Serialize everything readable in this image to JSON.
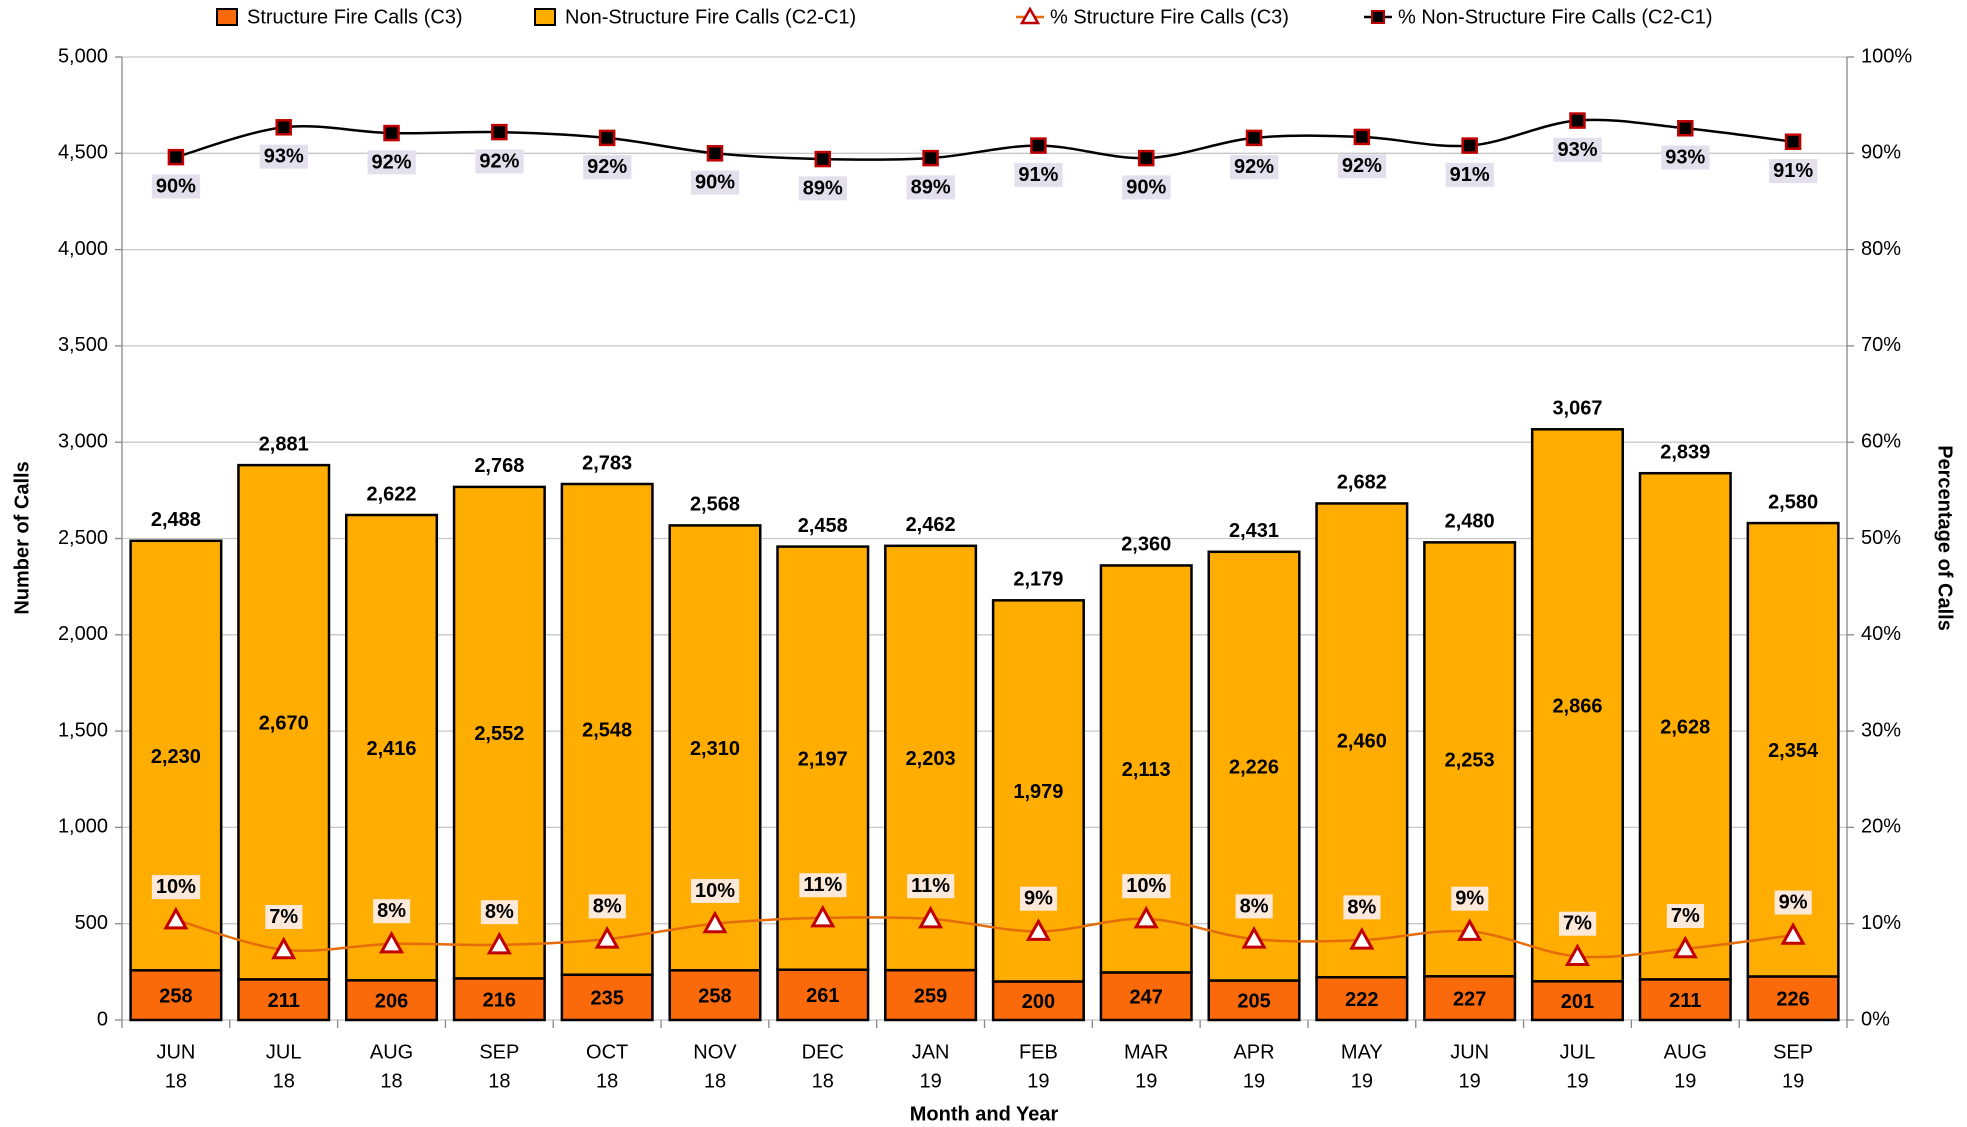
{
  "chart_data": {
    "type": "bar",
    "categories": [
      [
        "JUN",
        "18"
      ],
      [
        "JUL",
        "18"
      ],
      [
        "AUG",
        "18"
      ],
      [
        "SEP",
        "18"
      ],
      [
        "OCT",
        "18"
      ],
      [
        "NOV",
        "18"
      ],
      [
        "DEC",
        "18"
      ],
      [
        "JAN",
        "19"
      ],
      [
        "FEB",
        "19"
      ],
      [
        "MAR",
        "19"
      ],
      [
        "APR",
        "19"
      ],
      [
        "MAY",
        "19"
      ],
      [
        "JUN",
        "19"
      ],
      [
        "JUL",
        "19"
      ],
      [
        "AUG",
        "19"
      ],
      [
        "SEP",
        "19"
      ]
    ],
    "series": [
      {
        "name": "Structure Fire Calls (C3)",
        "type": "bar",
        "color": "#fa6a0a",
        "values": [
          258,
          211,
          206,
          216,
          235,
          258,
          261,
          259,
          200,
          247,
          205,
          222,
          227,
          201,
          211,
          226
        ]
      },
      {
        "name": "Non-Structure Fire Calls (C2-C1)",
        "type": "bar",
        "color": "#ffad00",
        "values": [
          2230,
          2670,
          2416,
          2552,
          2548,
          2310,
          2197,
          2203,
          1979,
          2113,
          2226,
          2460,
          2253,
          2866,
          2628,
          2354
        ],
        "value_labels": [
          "2,230",
          "2,670",
          "2,416",
          "2,552",
          "2,548",
          "2,310",
          "2,197",
          "2,203",
          "1,979",
          "2,113",
          "2,226",
          "2,460",
          "2,253",
          "2,866",
          "2,628",
          "2,354"
        ]
      },
      {
        "name": "% Structure Fire Calls (C3)",
        "type": "line",
        "axis": "y2",
        "color": "#e46c0a",
        "marker": "triangle",
        "marker_color": "#c00000",
        "values": [
          10.4,
          7.3,
          7.9,
          7.8,
          8.4,
          10.0,
          10.6,
          10.5,
          9.2,
          10.5,
          8.4,
          8.3,
          9.2,
          6.6,
          7.4,
          8.8
        ],
        "value_labels": [
          "10%",
          "7%",
          "8%",
          "8%",
          "8%",
          "10%",
          "11%",
          "11%",
          "9%",
          "10%",
          "8%",
          "8%",
          "9%",
          "7%",
          "7%",
          "9%"
        ]
      },
      {
        "name": "% Non-Structure Fire Calls (C2-C1)",
        "type": "line",
        "axis": "y2",
        "color": "#000000",
        "marker": "square",
        "marker_color": "#c00000",
        "values": [
          89.6,
          92.7,
          92.1,
          92.2,
          91.6,
          90.0,
          89.4,
          89.5,
          90.8,
          89.5,
          91.6,
          91.7,
          90.8,
          93.4,
          92.6,
          91.2
        ],
        "value_labels": [
          "90%",
          "93%",
          "92%",
          "92%",
          "92%",
          "90%",
          "89%",
          "89%",
          "91%",
          "90%",
          "92%",
          "92%",
          "91%",
          "93%",
          "93%",
          "91%"
        ]
      }
    ],
    "totals": {
      "values": [
        2488,
        2881,
        2622,
        2768,
        2783,
        2568,
        2458,
        2462,
        2179,
        2360,
        2431,
        2682,
        2480,
        3067,
        2839,
        2580
      ],
      "value_labels": [
        "2,488",
        "2,881",
        "2,622",
        "2,768",
        "2,783",
        "2,568",
        "2,458",
        "2,462",
        "2,179",
        "2,360",
        "2,431",
        "2,682",
        "2,480",
        "3,067",
        "2,839",
        "2,580"
      ]
    },
    "ylabel": "Number of Calls",
    "y2label": "Percentage of Calls",
    "xlabel": "Month and Year",
    "ylim": [
      0,
      5000
    ],
    "yticks": [
      0,
      500,
      {
        "value": 1000,
        "label": "1,000"
      },
      {
        "value": 1500,
        "label": "1,500"
      },
      {
        "value": 2000,
        "label": "2,000"
      },
      {
        "value": 2500,
        "label": "2,500"
      },
      {
        "value": 3000,
        "label": "3,000"
      },
      {
        "value": 3500,
        "label": "3,500"
      },
      {
        "value": 4000,
        "label": "4,000"
      },
      {
        "value": 4500,
        "label": "4,500"
      },
      {
        "value": 5000,
        "label": "5,000"
      }
    ],
    "y2lim": [
      0,
      100
    ],
    "y2ticks": [
      {
        "value": 0,
        "label": "0%"
      },
      {
        "value": 10,
        "label": "10%"
      },
      {
        "value": 20,
        "label": "20%"
      },
      {
        "value": 30,
        "label": "30%"
      },
      {
        "value": 40,
        "label": "40%"
      },
      {
        "value": 50,
        "label": "50%"
      },
      {
        "value": 60,
        "label": "60%"
      },
      {
        "value": 70,
        "label": "70%"
      },
      {
        "value": 80,
        "label": "80%"
      },
      {
        "value": 90,
        "label": "90%"
      },
      {
        "value": 100,
        "label": "100%"
      }
    ],
    "grid": true,
    "legend": "top"
  }
}
